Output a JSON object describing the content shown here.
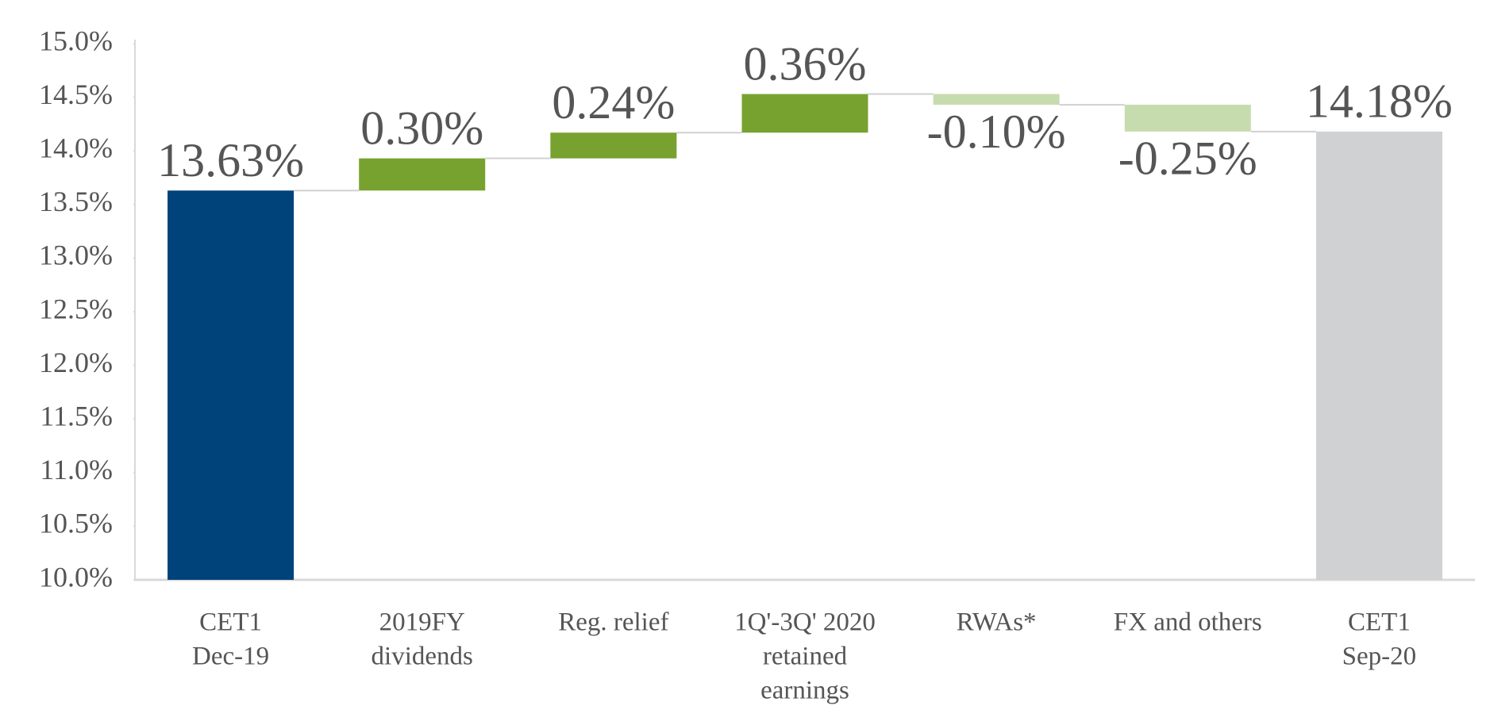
{
  "chart_data": {
    "type": "waterfall",
    "categories": [
      [
        "CET1",
        "Dec-19"
      ],
      [
        "2019FY",
        "dividends"
      ],
      [
        "Reg. relief"
      ],
      [
        "1Q'-3Q' 2020",
        "retained",
        "earnings"
      ],
      [
        "RWAs*"
      ],
      [
        "FX and others"
      ],
      [
        "CET1",
        "Sep-20"
      ]
    ],
    "values": [
      13.63,
      0.3,
      0.24,
      0.36,
      -0.1,
      -0.25,
      14.18
    ],
    "value_labels": [
      "13.63%",
      "0.30%",
      "0.24%",
      "0.36%",
      "-0.10%",
      "-0.25%",
      "14.18%"
    ],
    "measure": [
      "absolute",
      "relative",
      "relative",
      "relative",
      "relative",
      "relative",
      "absolute"
    ],
    "colors": [
      "#00427a",
      "#77a22f",
      "#77a22f",
      "#77a22f",
      "#c6dcae",
      "#c6dcae",
      "#d0d1d3"
    ],
    "ylim": [
      10,
      15
    ],
    "yticks": [
      {
        "value": 10,
        "label": "10.0%"
      },
      {
        "value": 10.5,
        "label": "10.5%"
      },
      {
        "value": 11,
        "label": "11.0%"
      },
      {
        "value": 11.5,
        "label": "11.5%"
      },
      {
        "value": 12,
        "label": "12.0%"
      },
      {
        "value": 12.5,
        "label": "12.5%"
      },
      {
        "value": 13,
        "label": "13.0%"
      },
      {
        "value": 13.5,
        "label": "13.5%"
      },
      {
        "value": 14,
        "label": "14.0%"
      },
      {
        "value": 14.5,
        "label": "14.5%"
      },
      {
        "value": 15,
        "label": "15.0%"
      }
    ]
  }
}
